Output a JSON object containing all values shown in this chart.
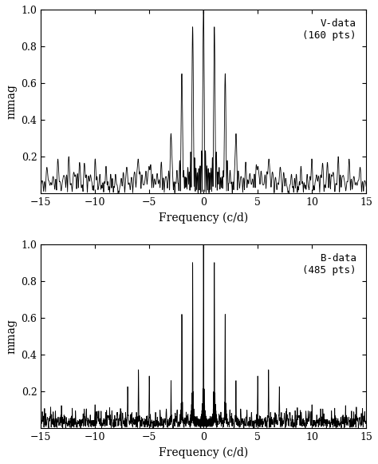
{
  "title": "",
  "panels": [
    {
      "label": "V-data\n(160 pts)",
      "n_pts": 160,
      "seed": 7,
      "xlim": [
        -15,
        15
      ],
      "ylim": [
        0,
        1.0
      ],
      "xticks": [
        -15,
        -10,
        -5,
        0,
        5,
        10,
        15
      ],
      "yticks": [
        0.2,
        0.4,
        0.6,
        0.8,
        1.0
      ],
      "xlabel": "Frequency (c/d)",
      "ylabel": "mmag",
      "n_nights": 8,
      "obs_per_night": 20,
      "night_duration": 0.25
    },
    {
      "label": "B-data\n(485 pts)",
      "n_pts": 485,
      "seed": 13,
      "xlim": [
        -15,
        15
      ],
      "ylim": [
        0,
        1.0
      ],
      "xticks": [
        -15,
        -10,
        -5,
        0,
        5,
        10,
        15
      ],
      "yticks": [
        0.2,
        0.4,
        0.6,
        0.8,
        1.0
      ],
      "xlabel": "Frequency (c/d)",
      "ylabel": "mmag",
      "n_nights": 24,
      "obs_per_night": 20,
      "night_duration": 0.25
    }
  ],
  "line_color": "#000000",
  "bg_color": "#ffffff",
  "line_width": 0.6,
  "n_freqs": 4000
}
